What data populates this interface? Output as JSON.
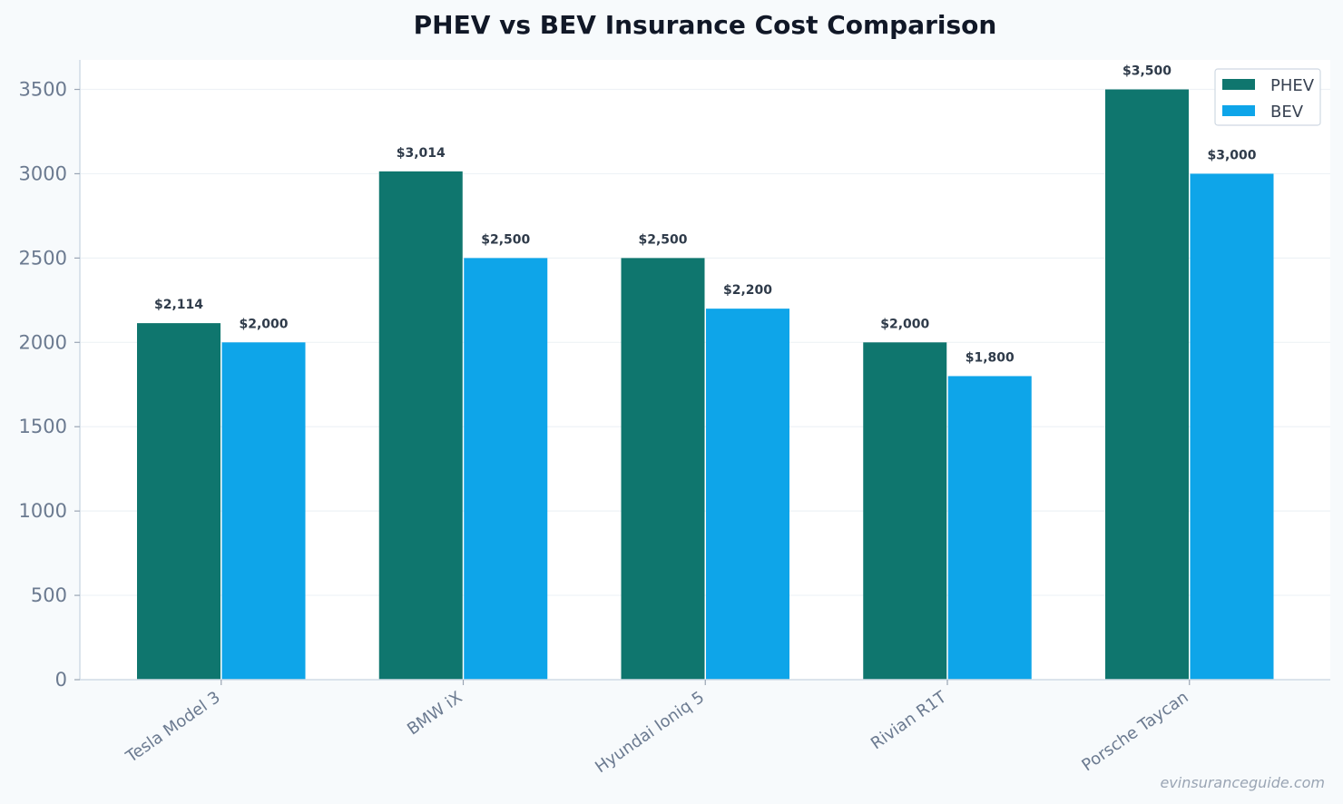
{
  "chart_data": {
    "type": "bar",
    "title": "PHEV vs BEV Insurance Cost Comparison",
    "xlabel": "",
    "ylabel": "",
    "categories": [
      "Tesla Model 3",
      "BMW iX",
      "Hyundai Ioniq 5",
      "Rivian R1T",
      "Porsche Taycan"
    ],
    "series": [
      {
        "name": "PHEV",
        "color": "#0f766e",
        "values": [
          2114,
          3014,
          2500,
          2000,
          3500
        ],
        "labels": [
          "$2,114",
          "$3,014",
          "$2,500",
          "$2,000",
          "$3,500"
        ]
      },
      {
        "name": "BEV",
        "color": "#0ea5e9",
        "values": [
          2000,
          2500,
          2200,
          1800,
          3000
        ],
        "labels": [
          "$2,000",
          "$2,500",
          "$2,200",
          "$1,800",
          "$3,000"
        ]
      }
    ],
    "ylim": [
      0,
      3675
    ],
    "yticks": [
      0,
      500,
      1000,
      1500,
      2000,
      2500,
      3000,
      3500
    ],
    "ytick_labels": [
      "0",
      "500",
      "1000",
      "1500",
      "2000",
      "2500",
      "3000",
      "3500"
    ],
    "grid": true,
    "legend_position": "top-right"
  },
  "watermark": "evinsuranceguide.com",
  "colors": {
    "background": "#f7fafc",
    "plot_background": "#ffffff",
    "grid": "#eef2f6",
    "axis": "#d1dbe5"
  }
}
